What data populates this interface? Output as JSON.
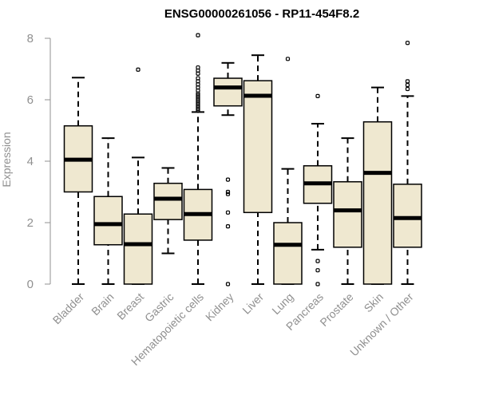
{
  "chart_data": {
    "type": "boxplot",
    "title": "ENSG00000261056 - RP11-454F8.2",
    "xlabel": "",
    "ylabel": "Expression",
    "ylim": [
      0,
      8
    ],
    "yticks": [
      0,
      2,
      4,
      6,
      8
    ],
    "grid": false,
    "box_fill": "#efe8d0",
    "box_stroke": "#000000",
    "axis_color": "#909090",
    "categories": [
      "Bladder",
      "Brain",
      "Breast",
      "Gastric",
      "Hematopoietic cells",
      "Kidney",
      "Liver",
      "Lung",
      "Pancreas",
      "Prostate",
      "Skin",
      "Unknown / Other"
    ],
    "boxes": [
      {
        "name": "Bladder",
        "whisker_low": 0.0,
        "q1": 3.0,
        "median": 4.05,
        "q3": 5.15,
        "whisker_high": 6.72,
        "outliers": []
      },
      {
        "name": "Brain",
        "whisker_low": 0.0,
        "q1": 1.28,
        "median": 1.95,
        "q3": 2.85,
        "whisker_high": 4.75,
        "outliers": []
      },
      {
        "name": "Breast",
        "whisker_low": 0.0,
        "q1": 0.0,
        "median": 1.3,
        "q3": 2.28,
        "whisker_high": 4.12,
        "outliers": [
          6.98
        ]
      },
      {
        "name": "Gastric",
        "whisker_low": 1.0,
        "q1": 2.1,
        "median": 2.78,
        "q3": 3.28,
        "whisker_high": 3.78,
        "outliers": []
      },
      {
        "name": "Hematopoietic cells",
        "whisker_low": 0.0,
        "q1": 1.43,
        "median": 2.28,
        "q3": 3.08,
        "whisker_high": 5.6,
        "outliers": [
          5.65,
          5.7,
          5.75,
          5.8,
          5.85,
          5.9,
          5.95,
          6.0,
          6.05,
          6.1,
          6.15,
          6.2,
          6.3,
          6.4,
          6.5,
          6.6,
          6.7,
          6.85,
          6.95,
          7.05,
          8.1
        ]
      },
      {
        "name": "Kidney",
        "whisker_low": 5.5,
        "q1": 5.8,
        "median": 6.4,
        "q3": 6.7,
        "whisker_high": 7.2,
        "outliers": [
          0.0,
          1.88,
          2.33,
          2.93,
          3.0,
          3.4
        ]
      },
      {
        "name": "Liver",
        "whisker_low": 0.0,
        "q1": 2.33,
        "median": 6.13,
        "q3": 6.62,
        "whisker_high": 7.45,
        "outliers": []
      },
      {
        "name": "Lung",
        "whisker_low": 0.0,
        "q1": 0.0,
        "median": 1.28,
        "q3": 2.0,
        "whisker_high": 3.75,
        "outliers": [
          7.33
        ]
      },
      {
        "name": "Pancreas",
        "whisker_low": 1.12,
        "q1": 2.63,
        "median": 3.28,
        "q3": 3.85,
        "whisker_high": 5.22,
        "outliers": [
          0.0,
          0.45,
          0.75,
          6.12
        ]
      },
      {
        "name": "Prostate",
        "whisker_low": 0.0,
        "q1": 1.2,
        "median": 2.4,
        "q3": 3.33,
        "whisker_high": 4.75,
        "outliers": []
      },
      {
        "name": "Skin",
        "whisker_low": 0.0,
        "q1": 0.0,
        "median": 3.62,
        "q3": 5.28,
        "whisker_high": 6.4,
        "outliers": []
      },
      {
        "name": "Unknown / Other",
        "whisker_low": 0.0,
        "q1": 1.2,
        "median": 2.15,
        "q3": 3.25,
        "whisker_high": 6.12,
        "outliers": [
          6.35,
          6.48,
          6.6,
          7.85
        ]
      }
    ]
  }
}
